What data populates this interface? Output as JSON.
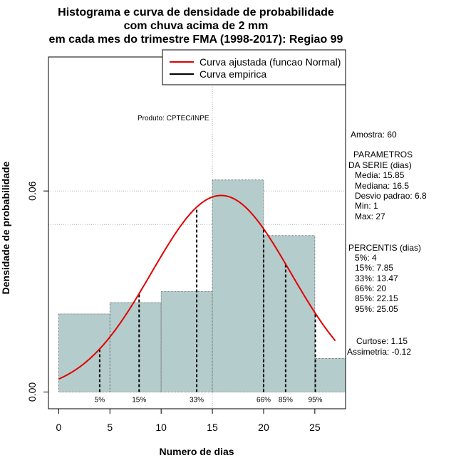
{
  "chart_data": {
    "type": "bar",
    "title_lines": [
      "Histograma e curva de densidade de probabilidade",
      "com chuva acima de 2 mm",
      "em cada mes do trimestre FMA (1998-2017): Regiao 99"
    ],
    "xlabel": "Numero de dias",
    "ylabel": "Densidade de probabilidade",
    "xlim": [
      -1,
      28
    ],
    "ylim": [
      -0.005,
      0.1
    ],
    "x_ticks": [
      0,
      5,
      10,
      15,
      20,
      25
    ],
    "y_ticks": [
      0.0,
      0.06
    ],
    "y_tick_labels": [
      "0.00",
      "0.06"
    ],
    "bins": [
      {
        "from": 0,
        "to": 5,
        "density": 0.0233
      },
      {
        "from": 5,
        "to": 10,
        "density": 0.0267
      },
      {
        "from": 10,
        "to": 15,
        "density": 0.03
      },
      {
        "from": 15,
        "to": 20,
        "density": 0.0633
      },
      {
        "from": 20,
        "to": 25,
        "density": 0.0467
      },
      {
        "from": 25,
        "to": 28,
        "density": 0.01
      }
    ],
    "bar_color": "#b5cccc",
    "curve_color": "#e00000",
    "normal_fit": {
      "mean": 15.85,
      "sd": 6.8,
      "from": 0,
      "to": 27
    },
    "percentiles": [
      {
        "label": "5%",
        "x": 4
      },
      {
        "label": "15%",
        "x": 7.85
      },
      {
        "label": "33%",
        "x": 13.47
      },
      {
        "label": "66%",
        "x": 20
      },
      {
        "label": "85%",
        "x": 22.15
      },
      {
        "label": "95%",
        "x": 25.05
      }
    ],
    "hgrid": [
      0.06,
      0.05
    ],
    "vgrid": [
      15
    ],
    "legend": {
      "position": "top-right",
      "entries": [
        {
          "label": "Curva ajustada (funcao Normal)",
          "color": "#e00000"
        },
        {
          "label": "Curva empirica",
          "color": "#000000"
        }
      ]
    },
    "annotation": "Produto: CPTEC/INPE"
  },
  "stats": {
    "amostra": "Amostra: 60",
    "param_header1": "PARAMETROS",
    "param_header2": "DA SERIE (dias)",
    "media": "Media: 15.85",
    "mediana": "Mediana: 16.5",
    "desvio": "Desvio padrao: 6.8",
    "min": "Min: 1",
    "max": "Max: 27",
    "percentis_header": "PERCENTIS (dias)",
    "p5": "5%: 4",
    "p15": "15%: 7.85",
    "p33": "33%: 13.47",
    "p66": "66%: 20",
    "p85": "85%: 22.15",
    "p95": "95%: 25.05",
    "curtose": "Curtose: 1.15",
    "assimetria": "Assimetria: -0.12"
  }
}
